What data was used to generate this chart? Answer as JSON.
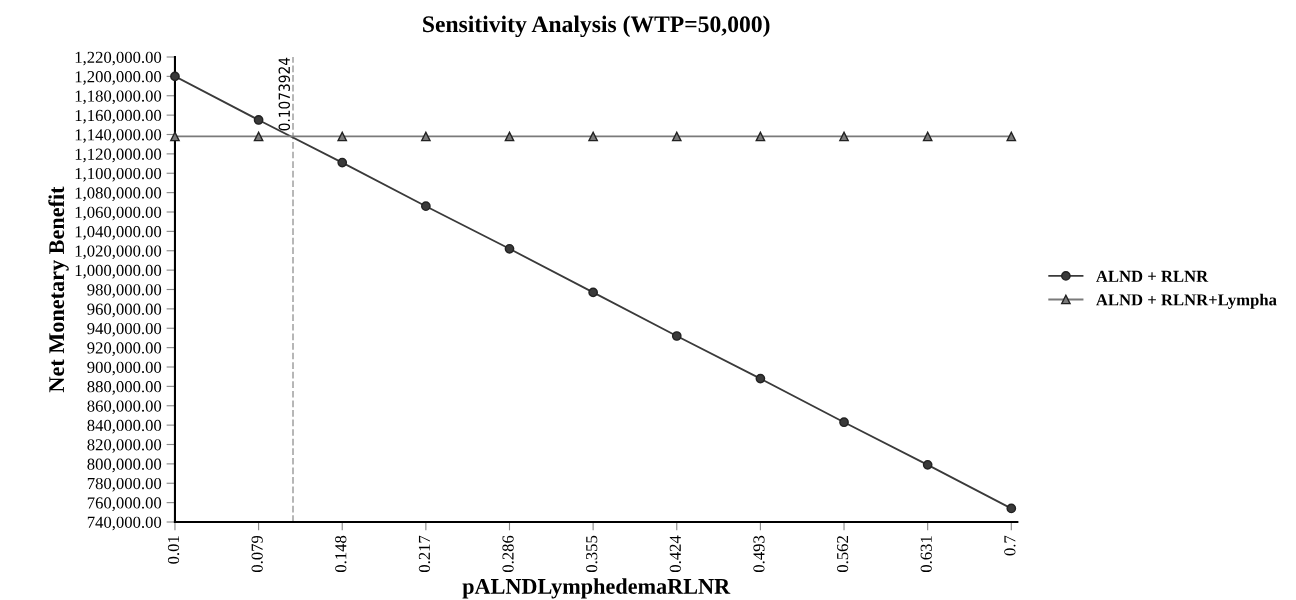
{
  "chart_data": {
    "type": "line",
    "title": "Sensitivity Analysis (WTP=50,000)",
    "xlabel": "pALNDLymphedemaRLNR",
    "ylabel": "Net Monetary Benefit",
    "x": [
      0.01,
      0.079,
      0.148,
      0.217,
      0.286,
      0.355,
      0.424,
      0.493,
      0.562,
      0.631,
      0.7
    ],
    "series": [
      {
        "name": "ALND + RLNR",
        "color": "#3a3a3a",
        "marker": "circle",
        "values": [
          1200000,
          1155000,
          1111000,
          1066000,
          1022000,
          977000,
          932000,
          888000,
          843000,
          799000,
          754000
        ]
      },
      {
        "name": "ALND + RLNR+Lympha",
        "color": "#7a7a7a",
        "marker": "triangle",
        "values": [
          1138000,
          1138000,
          1138000,
          1138000,
          1138000,
          1138000,
          1138000,
          1138000,
          1138000,
          1138000,
          1138000
        ]
      }
    ],
    "xlim": [
      0.01,
      0.705
    ],
    "xticks": [
      0.01,
      0.079,
      0.148,
      0.217,
      0.286,
      0.355,
      0.424,
      0.493,
      0.562,
      0.631,
      0.7
    ],
    "ylim": [
      740000,
      1220000
    ],
    "yticks": [
      {
        "value": 740000,
        "label": "740,000.00"
      },
      {
        "value": 760000,
        "label": "760,000.00"
      },
      {
        "value": 780000,
        "label": "780,000.00"
      },
      {
        "value": 800000,
        "label": "800,000.00"
      },
      {
        "value": 820000,
        "label": "820,000.00"
      },
      {
        "value": 840000,
        "label": "840,000.00"
      },
      {
        "value": 860000,
        "label": "860,000.00"
      },
      {
        "value": 880000,
        "label": "880,000.00"
      },
      {
        "value": 900000,
        "label": "900,000.00"
      },
      {
        "value": 920000,
        "label": "920,000.00"
      },
      {
        "value": 940000,
        "label": "940,000.00"
      },
      {
        "value": 960000,
        "label": "960,000.00"
      },
      {
        "value": 980000,
        "label": "980,000.00"
      },
      {
        "value": 1000000,
        "label": "1,000,000.00"
      },
      {
        "value": 1020000,
        "label": "1,020,000.00"
      },
      {
        "value": 1040000,
        "label": "1,040,000.00"
      },
      {
        "value": 1060000,
        "label": "1,060,000.00"
      },
      {
        "value": 1080000,
        "label": "1,080,000.00"
      },
      {
        "value": 1100000,
        "label": "1,100,000.00"
      },
      {
        "value": 1120000,
        "label": "1,120,000.00"
      },
      {
        "value": 1140000,
        "label": "1,140,000.00"
      },
      {
        "value": 1160000,
        "label": "1,160,000.00"
      },
      {
        "value": 1180000,
        "label": "1,180,000.00"
      },
      {
        "value": 1200000,
        "label": "1,200,000.00"
      },
      {
        "value": 1220000,
        "label": "1,220,000.00"
      }
    ],
    "ref_lines": [
      {
        "axis": "x",
        "value": 0.1073924,
        "label": "0.1073924",
        "color": "#b0b0b0",
        "line_style": "dashed"
      }
    ],
    "grid": false,
    "legend": "right",
    "line_style": "solid"
  }
}
